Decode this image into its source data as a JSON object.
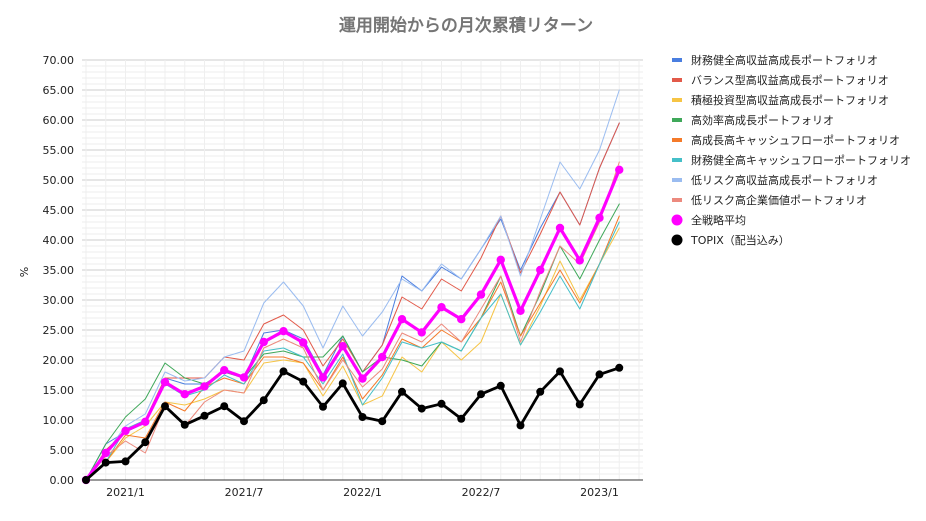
{
  "chart_data": {
    "type": "line",
    "title": "運用開始からの月次累積リターン",
    "xlabel": "",
    "ylabel": "%",
    "ylim": [
      0,
      70
    ],
    "yticks": [
      "0.00",
      "5.00",
      "10.00",
      "15.00",
      "20.00",
      "25.00",
      "30.00",
      "35.00",
      "40.00",
      "45.00",
      "50.00",
      "55.00",
      "60.00",
      "65.00",
      "70.00"
    ],
    "grid": "on",
    "legend_position": "right",
    "x": [
      "2020/10",
      "2020/11",
      "2020/12",
      "2021/1",
      "2021/2",
      "2021/3",
      "2021/4",
      "2021/5",
      "2021/6",
      "2021/7",
      "2021/8",
      "2021/9",
      "2021/10",
      "2021/11",
      "2021/12",
      "2022/1",
      "2022/2",
      "2022/3",
      "2022/4",
      "2022/5",
      "2022/6",
      "2022/7",
      "2022/8",
      "2022/9",
      "2022/10",
      "2022/11",
      "2022/12",
      "2023/1",
      "2023/2"
    ],
    "x_ticks": [
      {
        "label": "2021/1",
        "index": 2
      },
      {
        "label": "2021/7",
        "index": 8
      },
      {
        "label": "2022/1",
        "index": 14
      },
      {
        "label": "2022/7",
        "index": 20
      },
      {
        "label": "2023/1",
        "index": 26
      }
    ],
    "series": [
      {
        "name": "財務健全高収益高成長ポートフォリオ",
        "color": "#4a7ee0",
        "width": 1,
        "values": [
          0,
          6,
          8,
          9.5,
          17,
          16,
          16,
          18,
          17,
          24.5,
          25,
          23.5,
          17.5,
          24,
          18,
          22.5,
          34,
          31.5,
          35.5,
          33.5,
          38.5,
          43.5,
          35,
          42,
          48,
          42.5,
          52,
          59.5,
          null
        ]
      },
      {
        "name": "バランス型高収益高成長ポートフォリオ",
        "color": "#e25a4a",
        "width": 1,
        "values": [
          0,
          5,
          8,
          10,
          17,
          17,
          17,
          20.5,
          20,
          26,
          27.5,
          25,
          19,
          23.5,
          18,
          22.5,
          30.5,
          28.5,
          33.5,
          31.5,
          37,
          44,
          34.5,
          41,
          48,
          42.5,
          52,
          59.5,
          null
        ]
      },
      {
        "name": "積極投資型高収益高成長ポートフォリオ",
        "color": "#f6c445",
        "width": 1,
        "values": [
          0,
          3,
          7,
          9,
          13,
          12.5,
          13.5,
          15,
          14.5,
          19.5,
          20,
          19.5,
          14,
          19,
          12.5,
          14,
          20.5,
          18,
          23,
          20,
          23,
          31,
          22.5,
          29,
          36.5,
          30,
          36,
          42,
          null
        ]
      },
      {
        "name": "高効率高成長ポートフォリオ",
        "color": "#3fa85a",
        "width": 1,
        "values": [
          0,
          6,
          10.5,
          13.5,
          19.5,
          17,
          16,
          18,
          17,
          21,
          21.5,
          20.5,
          20.5,
          24,
          18,
          20.5,
          20,
          19,
          23,
          21.5,
          27,
          34,
          24,
          31,
          39,
          33.5,
          40,
          46,
          null
        ]
      },
      {
        "name": "高成長高キャッシュフローポートフォリオ",
        "color": "#f47a2a",
        "width": 1,
        "values": [
          0,
          3,
          7.5,
          7,
          13,
          11.5,
          15.5,
          17,
          16,
          20.5,
          20.5,
          19.5,
          15,
          20.5,
          13.5,
          17.5,
          23.5,
          22,
          25,
          23,
          27,
          33,
          24,
          29.5,
          35,
          29.5,
          36,
          44,
          null
        ]
      },
      {
        "name": "財務健全高キャッシュフローポートフォリオ",
        "color": "#45bfc8",
        "width": 1,
        "values": [
          0,
          3,
          8.5,
          10,
          16,
          14,
          15,
          17.5,
          16,
          21.5,
          22,
          20.5,
          16,
          21,
          12.5,
          17,
          23,
          22,
          23,
          21.5,
          27,
          31,
          22.5,
          28,
          34,
          28.5,
          36,
          43,
          null
        ]
      },
      {
        "name": "低リスク高収益高成長ポートフォリオ",
        "color": "#9abcf0",
        "width": 1,
        "values": [
          0,
          4.5,
          9,
          11,
          18,
          16.5,
          17,
          20.5,
          21.5,
          29.5,
          33,
          29,
          22,
          29,
          24,
          28,
          33.5,
          31.5,
          36,
          33.5,
          38.5,
          44,
          34,
          43.5,
          53,
          48.5,
          55,
          65,
          null
        ]
      },
      {
        "name": "低リスク高企業価値ポートフォリオ",
        "color": "#ec8a7e",
        "width": 1,
        "values": [
          0,
          4,
          6.5,
          4.5,
          12.5,
          9,
          13,
          15,
          14.5,
          22,
          23.5,
          22,
          15,
          20,
          15.5,
          18.5,
          24.5,
          23,
          26,
          23,
          28.5,
          34,
          23,
          31.5,
          39,
          36,
          43,
          53,
          null
        ]
      },
      {
        "name": "全戦略平均",
        "color": "#ff00ff",
        "width": 3.2,
        "marker": 4.2,
        "values": [
          0,
          4.5,
          8.2,
          9.7,
          16.3,
          14.3,
          15.6,
          18.3,
          17.1,
          23,
          24.8,
          22.9,
          17.1,
          22.3,
          16.9,
          20.5,
          26.8,
          24.6,
          28.8,
          26.8,
          30.9,
          36.7,
          28.2,
          35,
          42,
          36.6,
          43.7,
          51.7,
          null
        ]
      },
      {
        "name": "TOPIX（配当込み）",
        "color": "#000000",
        "width": 2.8,
        "marker": 4,
        "values": [
          0,
          2.9,
          3.1,
          6.3,
          12.3,
          9.2,
          10.7,
          12.3,
          9.8,
          13.3,
          18.1,
          16.4,
          12.2,
          16.1,
          10.5,
          9.8,
          14.7,
          11.9,
          12.7,
          10.2,
          14.3,
          15.7,
          9.1,
          14.7,
          18.1,
          12.6,
          17.6,
          18.7,
          null
        ]
      }
    ]
  }
}
